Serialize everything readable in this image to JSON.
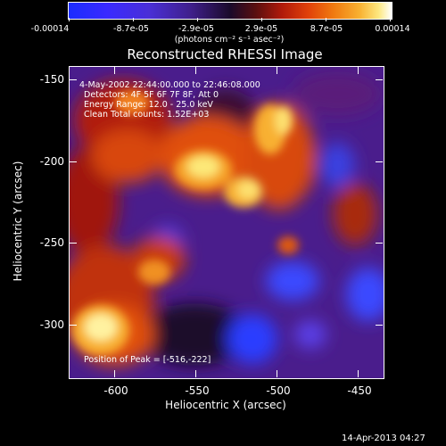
{
  "colorbar": {
    "tick_labels": [
      "-0.00014",
      "-8.7e-05",
      "-2.9e-05",
      "2.9e-05",
      "8.7e-05",
      "0.00014"
    ],
    "units": "(photons cm⁻² s⁻¹ asec⁻²)"
  },
  "title": "Reconstructed RHESSI Image",
  "annotations": {
    "time_range": "4-May-2002 22:44:00.000 to 22:46:08.000",
    "detectors": "Detectors: 4F 5F 6F 7F 8F, Att 0",
    "energy_range": "Energy Range: 12.0 - 25.0 keV",
    "clean": "Clean     Total counts: 1.52E+03",
    "peak": "Position of Peak = [-516,-222]"
  },
  "axes": {
    "xlabel": "Heliocentric X (arcsec)",
    "ylabel": "Heliocentric Y (arcsec)",
    "x_ticks": [
      "-600",
      "-550",
      "-500",
      "-450"
    ],
    "y_ticks": [
      "-150",
      "-200",
      "-250",
      "-300"
    ],
    "x_range": [
      -628,
      -436
    ],
    "y_range": [
      -332,
      -141
    ]
  },
  "footer": {
    "date": "14-Apr-2013 04:27"
  }
}
